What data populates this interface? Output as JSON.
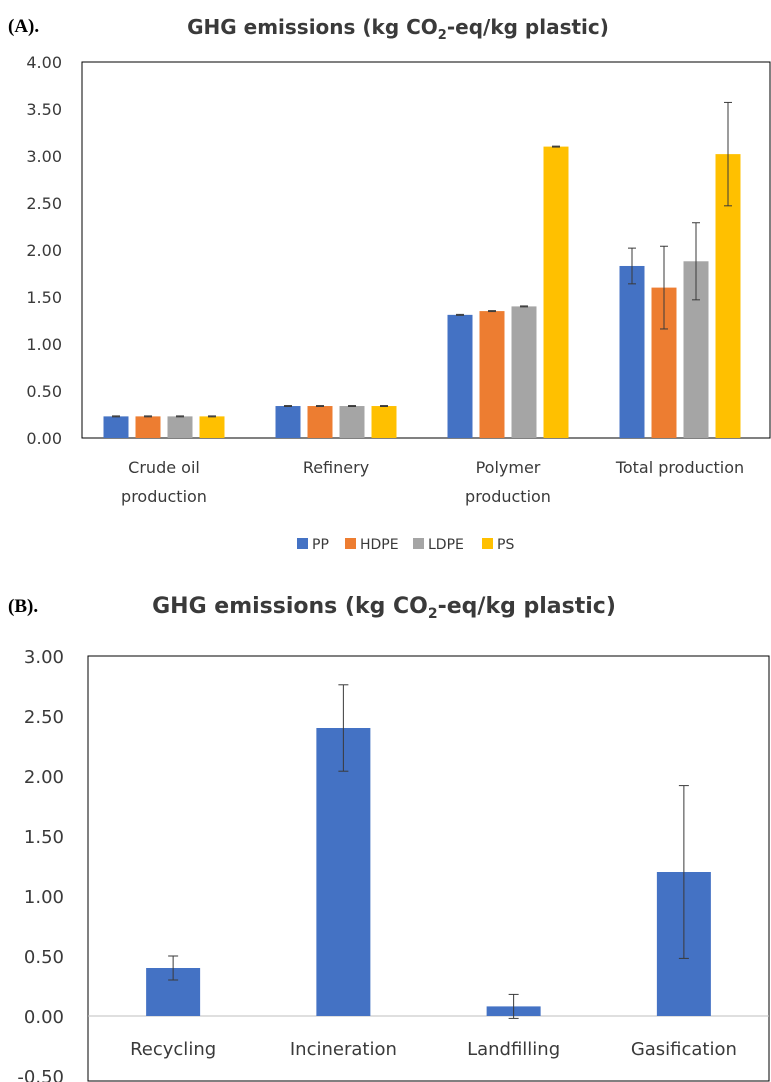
{
  "chart_data": [
    {
      "type": "bar",
      "panel_label": "(A).",
      "title_pre": "GHG emissions (kg CO",
      "title_sub": "2",
      "title_post": "-eq/kg plastic)",
      "categories": [
        [
          "Crude oil",
          "production"
        ],
        [
          "Refinery"
        ],
        [
          "Polymer",
          "production"
        ],
        [
          "Total production"
        ]
      ],
      "series": [
        {
          "name": "PP",
          "color": "#4472C4",
          "values": [
            0.23,
            0.34,
            1.31,
            1.83
          ],
          "errors": [
            0.005,
            0.005,
            0.005,
            0.19
          ]
        },
        {
          "name": "HDPE",
          "color": "#ED7D31",
          "values": [
            0.23,
            0.34,
            1.35,
            1.6
          ],
          "errors": [
            0.005,
            0.005,
            0.005,
            0.44
          ]
        },
        {
          "name": "LDPE",
          "color": "#A5A5A5",
          "values": [
            0.23,
            0.34,
            1.4,
            1.88
          ],
          "errors": [
            0.005,
            0.005,
            0.005,
            0.41
          ]
        },
        {
          "name": "PS",
          "color": "#FFC000",
          "values": [
            0.23,
            0.34,
            3.1,
            3.02
          ],
          "errors": [
            0.005,
            0.005,
            0.005,
            0.55
          ]
        }
      ],
      "ylim": [
        0,
        4
      ],
      "yticks": [
        "0.00",
        "0.50",
        "1.00",
        "1.50",
        "2.00",
        "2.50",
        "3.00",
        "3.50",
        "4.00"
      ],
      "legend_position": "bottom",
      "grid": false
    },
    {
      "type": "bar",
      "panel_label": "(B).",
      "title_pre": "GHG emissions (kg CO",
      "title_sub": "2",
      "title_post": "-eq/kg plastic)",
      "categories": [
        [
          "Recycling"
        ],
        [
          "Incineration"
        ],
        [
          "Landfilling"
        ],
        [
          "Gasification"
        ]
      ],
      "series": [
        {
          "color": "#4472C4",
          "values": [
            0.4,
            2.4,
            0.08,
            1.2
          ],
          "errors": [
            0.1,
            0.36,
            0.1,
            0.72
          ]
        }
      ],
      "ylim": [
        -0.5,
        3
      ],
      "yticks": [
        "-0.50",
        "0.00",
        "0.50",
        "1.00",
        "1.50",
        "2.00",
        "2.50",
        "3.00"
      ],
      "grid": false
    }
  ]
}
